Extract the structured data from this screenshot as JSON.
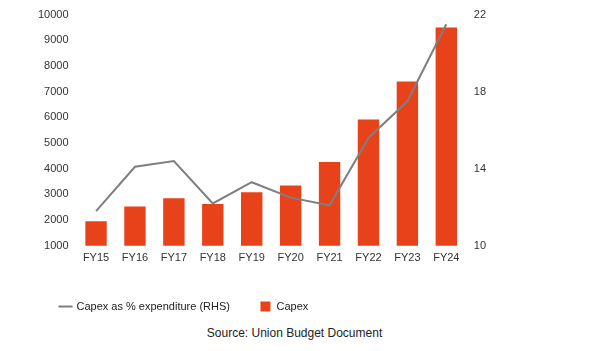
{
  "chart_data": {
    "type": "bar",
    "categories": [
      "FY15",
      "FY16",
      "FY17",
      "FY18",
      "FY19",
      "FY20",
      "FY21",
      "FY22",
      "FY23",
      "FY24"
    ],
    "series": [
      {
        "name": "Capex",
        "type": "bar",
        "color": "#e8421b",
        "values": [
          1960,
          2530,
          2850,
          2630,
          3080,
          3350,
          4260,
          5920,
          7400,
          9500
        ]
      },
      {
        "name": "Capex as % expenditure (RHS)",
        "type": "line",
        "axis": "y2",
        "color": "#7f7f7f",
        "marker": "none",
        "values": [
          11.8,
          14.1,
          14.4,
          12.2,
          13.3,
          12.5,
          12.1,
          15.6,
          17.5,
          21.5
        ]
      }
    ],
    "ylim": [
      1000,
      10000
    ],
    "yticks": [
      1000,
      2000,
      3000,
      4000,
      5000,
      6000,
      7000,
      8000,
      9000,
      10000
    ],
    "y2lim": [
      10,
      22
    ],
    "y2ticks": [
      10,
      14,
      18,
      22
    ],
    "grid": false,
    "legend": "bottom",
    "source": "Source: Union Budget Document"
  }
}
